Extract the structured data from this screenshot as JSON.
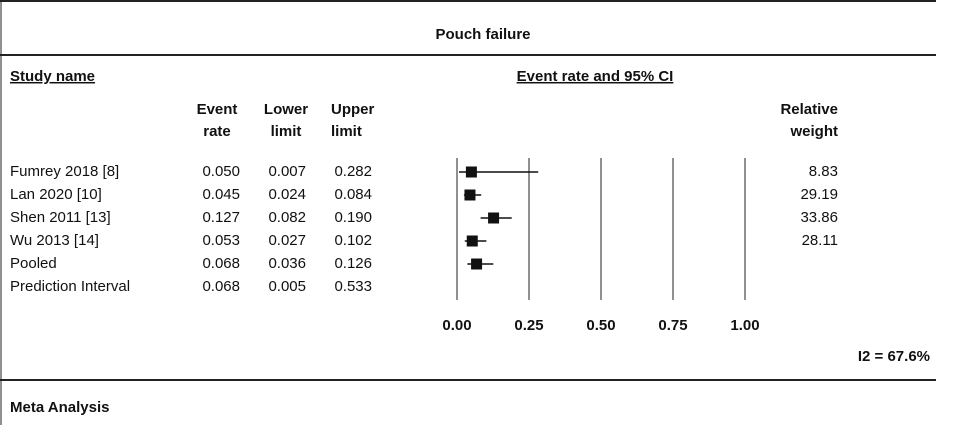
{
  "chart_data": {
    "type": "forest",
    "title": "Pouch failure",
    "category_header": "Study name",
    "plot_header": "Event rate and 95% CI",
    "footer": "Meta Analysis",
    "annotation": "I2 = 67.6%",
    "categories": [
      "Fumrey 2018 [8]",
      "Lan 2020 [10]",
      "Shen 2011 [13]",
      "Wu 2013 [14]",
      "Pooled",
      "Prediction Interval"
    ],
    "series": [
      {
        "name": "Event rate",
        "color": "#111111",
        "values": [
          0.05,
          0.045,
          0.127,
          0.053,
          0.068,
          0.068
        ],
        "value_labels": [
          "0.050",
          "0.045",
          "0.127",
          "0.053",
          "0.068",
          "0.068"
        ]
      },
      {
        "name": "Lower limit",
        "values": [
          0.007,
          0.024,
          0.082,
          0.027,
          0.036,
          0.005
        ],
        "value_labels": [
          "0.007",
          "0.024",
          "0.082",
          "0.027",
          "0.036",
          "0.005"
        ]
      },
      {
        "name": "Upper limit",
        "values": [
          0.282,
          0.084,
          0.19,
          0.102,
          0.126,
          0.533
        ],
        "value_labels": [
          "0.282",
          "0.084",
          "0.190",
          "0.102",
          "0.126",
          "0.533"
        ]
      },
      {
        "name": "Relative weight",
        "values": [
          8.83,
          29.19,
          33.86,
          28.11,
          null,
          null
        ]
      }
    ],
    "xlim": [
      0,
      1
    ],
    "xticks": [
      {
        "value": 0,
        "label": "0.00"
      },
      {
        "value": 0.25,
        "label": "0.25"
      },
      {
        "value": 0.5,
        "label": "0.50"
      },
      {
        "value": 0.75,
        "label": "0.75"
      },
      {
        "value": 1,
        "label": "1.00"
      }
    ],
    "grid": true
  }
}
